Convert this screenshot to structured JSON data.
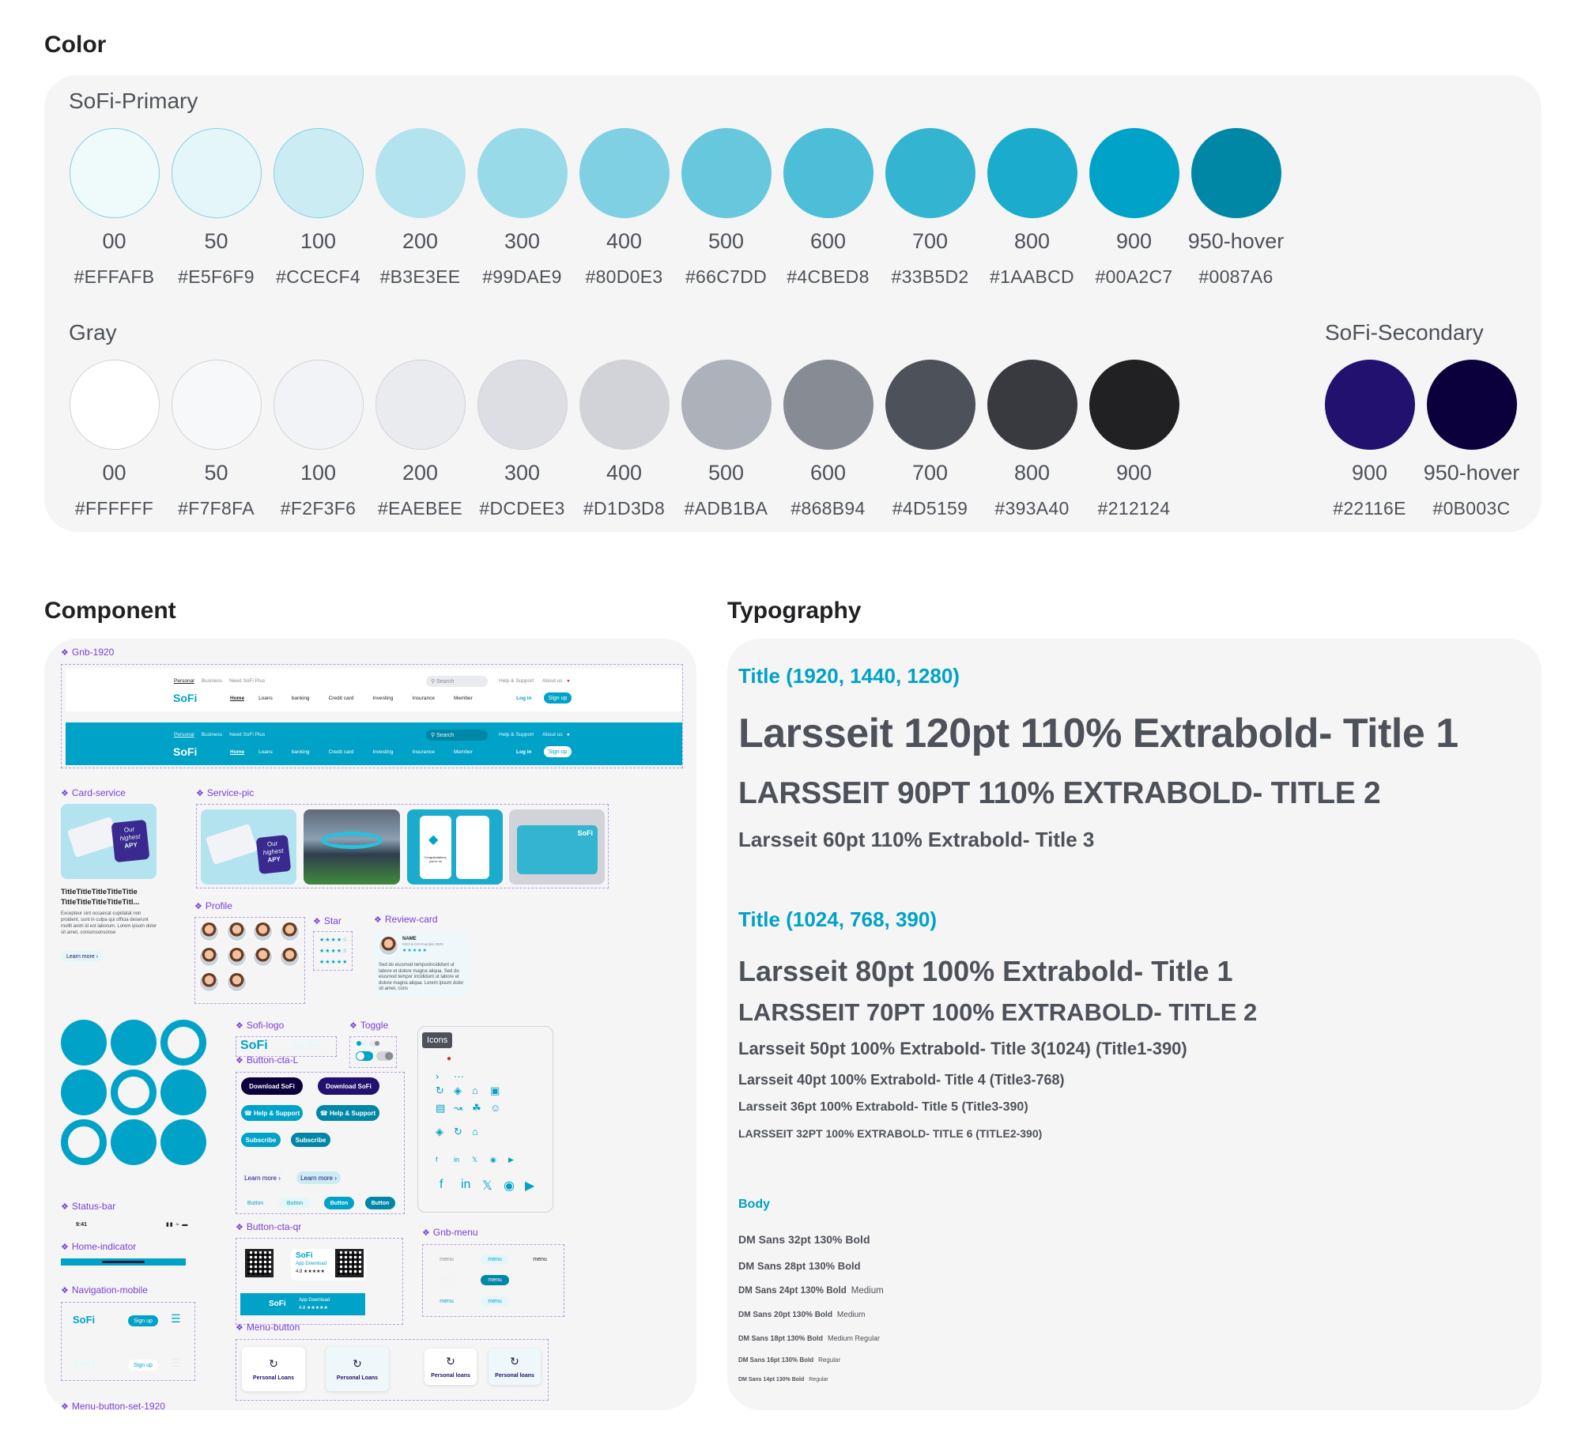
{
  "color": {
    "heading": "Color",
    "primary": {
      "title": "SoFi-Primary",
      "swatches": [
        {
          "name": "00",
          "hex": "#EFFAFB"
        },
        {
          "name": "50",
          "hex": "#E5F6F9"
        },
        {
          "name": "100",
          "hex": "#CCECF4"
        },
        {
          "name": "200",
          "hex": "#B3E3EE"
        },
        {
          "name": "300",
          "hex": "#99DAE9"
        },
        {
          "name": "400",
          "hex": "#80D0E3"
        },
        {
          "name": "500",
          "hex": "#66C7DD"
        },
        {
          "name": "600",
          "hex": "#4CBED8"
        },
        {
          "name": "700",
          "hex": "#33B5D2"
        },
        {
          "name": "800",
          "hex": "#1AABCD"
        },
        {
          "name": "900",
          "hex": "#00A2C7"
        },
        {
          "name": "950-hover",
          "hex": "#0087A6"
        }
      ]
    },
    "gray": {
      "title": "Gray",
      "swatches": [
        {
          "name": "00",
          "hex": "#FFFFFF"
        },
        {
          "name": "50",
          "hex": "#F7F8FA"
        },
        {
          "name": "100",
          "hex": "#F2F3F6"
        },
        {
          "name": "200",
          "hex": "#EAEBEE"
        },
        {
          "name": "300",
          "hex": "#DCDEE3"
        },
        {
          "name": "400",
          "hex": "#D1D3D8"
        },
        {
          "name": "500",
          "hex": "#ADB1BA"
        },
        {
          "name": "600",
          "hex": "#868B94"
        },
        {
          "name": "700",
          "hex": "#4D5159"
        },
        {
          "name": "800",
          "hex": "#393A40"
        },
        {
          "name": "900",
          "hex": "#212124"
        }
      ]
    },
    "secondary": {
      "title": "SoFi-Secondary",
      "swatches": [
        {
          "name": "900",
          "hex": "#22116E"
        },
        {
          "name": "950-hover",
          "hex": "#0B003C"
        }
      ]
    }
  },
  "component": {
    "heading": "Component",
    "labels": {
      "gnb": "Gnb-1920",
      "card_service": "Card-service",
      "service_pic": "Service-pic",
      "profile": "Profile",
      "star": "Star",
      "review_card": "Review-card",
      "sofi_logo": "Sofi-logo",
      "toggle": "Toggle",
      "button_cta_l": "Button-cta-L",
      "icons": "Icons",
      "status_bar": "Status-bar",
      "home_indicator": "Home-indicator",
      "navigation_mobile": "Navigation-mobile",
      "button_cta_qr": "Button-cta-qr",
      "gnb_menu": "Gnb-menu",
      "menu_button": "Menu-button",
      "menu_button_set": "Menu-button-set-1920"
    },
    "gnb": {
      "top_tabs": [
        "Personal",
        "Business",
        "Need SoFi Plus"
      ],
      "search_placeholder": "Search",
      "utility": [
        "Help & Support",
        "About us"
      ],
      "logo": "SoFi",
      "nav": [
        "Home",
        "Loans",
        "banking",
        "Credit card",
        "Investing",
        "Insurance",
        "Member"
      ],
      "login": "Log in",
      "signup": "Sign up"
    },
    "card": {
      "badge_line1": "Our",
      "badge_line2": "highest",
      "badge_line3": "APY",
      "title": "TitleTitleTitleTitleTitle TitleTitleTitleTitleTitl...",
      "body": "Excepteur sint occaecat cupidatat non proident, sunt in culpa qui officia deserunt mollit anim id est laborum. Lorem ipsum dolor sit amet, consonsonsonse",
      "cta": "Learn more"
    },
    "service_pics": {
      "phone_text": "Congratulations, you're in!",
      "card_logo": "SoFi"
    },
    "review": {
      "name": "NAME",
      "meta": "CEO & CO-Founder 2023",
      "body": "Sed do eiusmod temporincididunt ut labore et dolore magna aliqua. Sed do eiusmod tempor incididunt ut labore et dolore magna aliqua. Lorem ipsum dolor sit amet, cons"
    },
    "stars": [
      "★★★★☆",
      "★★★★☆",
      "★★★★★"
    ],
    "ctas": {
      "download": "Download SoFi",
      "help": "Help & Support",
      "subscribe": "Subscribe",
      "learn_more": "Learn more",
      "button": "Button"
    },
    "status_time": "9:41",
    "nav_mobile": {
      "logo": "SoFi",
      "signup": "Sign up"
    },
    "qr": {
      "logo": "SoFi",
      "app_download": "App Download",
      "rating": "4.8 ★★★★★"
    },
    "gnb_menu_item": "menu",
    "menu_buttons": [
      "Personal Loans",
      "Personal Loans",
      "Personal loans",
      "Personal loans"
    ]
  },
  "typography": {
    "heading": "Typography",
    "group1": {
      "title": "Title (1920, 1440, 1280)",
      "lines": [
        "Larsseit 120pt 110% Extrabold- Title 1",
        "LARSSEIT 90PT 110% EXTRABOLD- TITLE 2",
        "Larsseit 60pt 110% Extrabold- Title 3"
      ]
    },
    "group2": {
      "title": "Title (1024, 768, 390)",
      "lines": [
        "Larsseit 80pt 100% Extrabold- Title 1",
        "LARSSEIT 70PT 100% EXTRABOLD- TITLE 2",
        "Larsseit 50pt 100% Extrabold- Title 3(1024) (Title1-390)",
        "Larsseit 40pt 100% Extrabold- Title 4 (Title3-768)",
        "Larsseit 36pt 100% Extrabold- Title 5 (Title3-390)",
        "LARSSEIT 32PT 100% EXTRABOLD- TITLE 6 (TITLE2-390)"
      ]
    },
    "body": {
      "title": "Body",
      "lines": [
        {
          "bold": "DM Sans 32pt 130% Bold",
          "extra": ""
        },
        {
          "bold": "DM Sans 28pt 130% Bold",
          "extra": ""
        },
        {
          "bold": "DM Sans 24pt 130% Bold",
          "extra": "Medium"
        },
        {
          "bold": "DM Sans 20pt 130% Bold",
          "extra": "Medium"
        },
        {
          "bold": "DM Sans 18pt 130% Bold",
          "extra": "Medium  Regular"
        },
        {
          "bold": "DM Sans 16pt 130% Bold",
          "extra": "Regular"
        },
        {
          "bold": "DM Sans 14pt 130% Bold",
          "extra": "Regular"
        }
      ]
    }
  }
}
